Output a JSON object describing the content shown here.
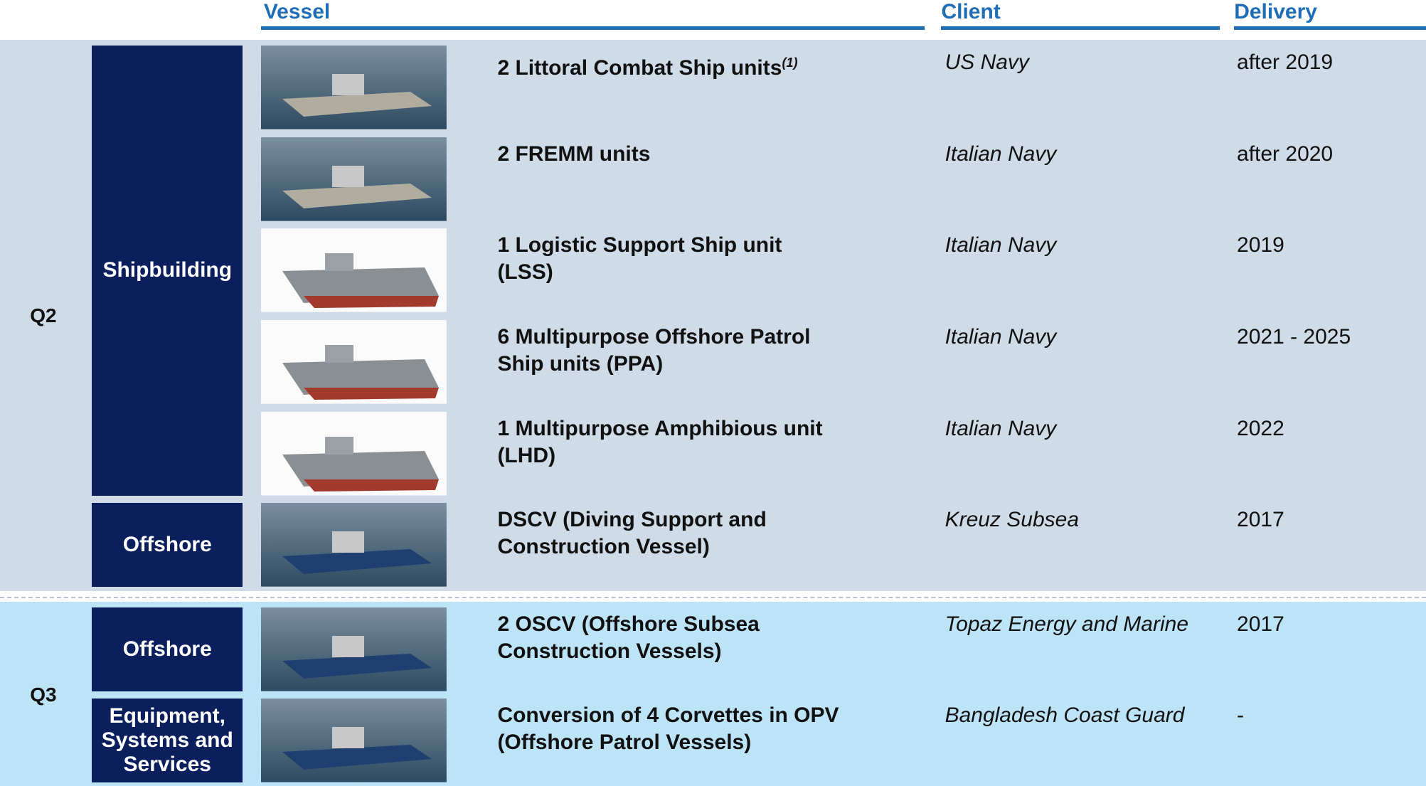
{
  "header": {
    "vessel": "Vessel",
    "client": "Client",
    "delivery": "Delivery"
  },
  "groups": [
    {
      "label": "Q2",
      "segments": [
        {
          "label": [
            "Shipbuilding"
          ],
          "rows": [
            {
              "vessel": [
                "2 Littoral Combat Ship units"
              ],
              "note": "(1)",
              "client": "US Navy",
              "delivery": "after 2019"
            },
            {
              "vessel": [
                "2 FREMM units"
              ],
              "client": "Italian Navy",
              "delivery": "after 2020"
            },
            {
              "vessel": [
                "1 Logistic Support Ship unit",
                "(LSS)"
              ],
              "client": "Italian Navy",
              "delivery": "2019"
            },
            {
              "vessel": [
                "6 Multipurpose Offshore Patrol",
                "Ship units (PPA)"
              ],
              "client": "Italian Navy",
              "delivery": "2021 - 2025"
            },
            {
              "vessel": [
                "1 Multipurpose Amphibious unit",
                "(LHD)"
              ],
              "client": "Italian Navy",
              "delivery": "2022"
            }
          ]
        },
        {
          "label": [
            "Offshore"
          ],
          "rows": [
            {
              "vessel": [
                "DSCV (Diving Support and",
                "Construction Vessel)"
              ],
              "client": "Kreuz Subsea",
              "delivery": "2017"
            }
          ]
        }
      ]
    },
    {
      "label": "Q3",
      "segments": [
        {
          "label": [
            "Offshore"
          ],
          "rows": [
            {
              "vessel": [
                "2 OSCV (Offshore Subsea",
                "Construction Vessels)"
              ],
              "client": "Topaz Energy and Marine",
              "delivery": "2017"
            }
          ]
        },
        {
          "label": [
            "Equipment,",
            "Systems and",
            "Services"
          ],
          "rows": [
            {
              "vessel": [
                "Conversion of 4 Corvettes in OPV",
                "(Offshore Patrol Vessels)"
              ],
              "client": "Bangladesh Coast Guard",
              "delivery": "-"
            }
          ]
        }
      ]
    }
  ]
}
